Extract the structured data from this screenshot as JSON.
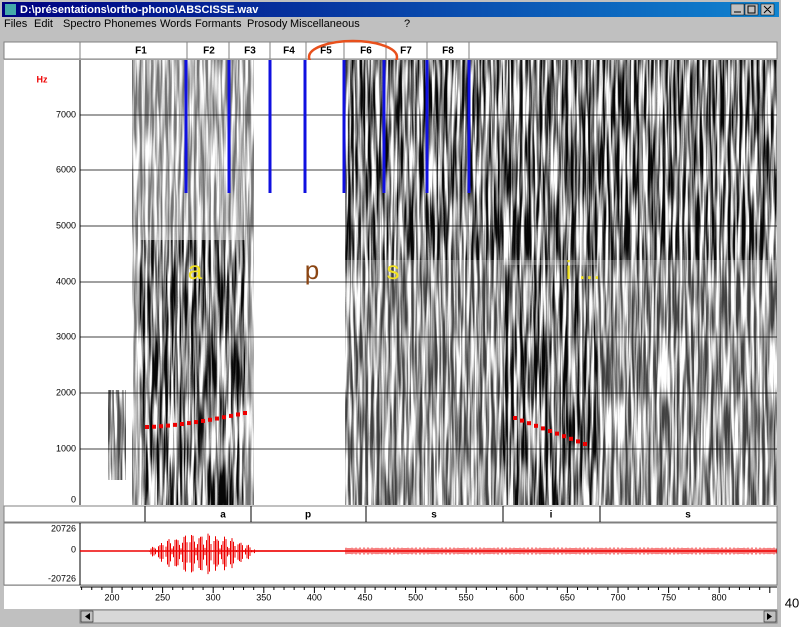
{
  "window": {
    "title": "D:\\présentations\\ortho-phono\\ABSCISSE.wav",
    "menu": [
      "Files",
      "Edit",
      "Spectro",
      "Phonemes",
      "Words",
      "Formants",
      "Prosody",
      "Miscellaneous",
      "?"
    ]
  },
  "frames": [
    "F1",
    "F2",
    "F3",
    "F4",
    "F5",
    "F6",
    "F7",
    "F8"
  ],
  "spectrogram": {
    "unit": "Hz",
    "y_labels": [
      "7000",
      "6000",
      "5000",
      "4000",
      "3000",
      "2000",
      "1000",
      "0"
    ],
    "annotations": [
      "a",
      "p",
      "s",
      "i ..."
    ]
  },
  "phonemes": [
    "a",
    "p",
    "s",
    "i",
    "s"
  ],
  "waveform": {
    "y_labels": [
      "20726",
      "0",
      "-20726"
    ]
  },
  "time_axis": {
    "labels": [
      "200",
      "250",
      "300",
      "350",
      "400",
      "450",
      "500",
      "550",
      "600",
      "650",
      "700",
      "750",
      "800"
    ]
  },
  "page_number": "40"
}
